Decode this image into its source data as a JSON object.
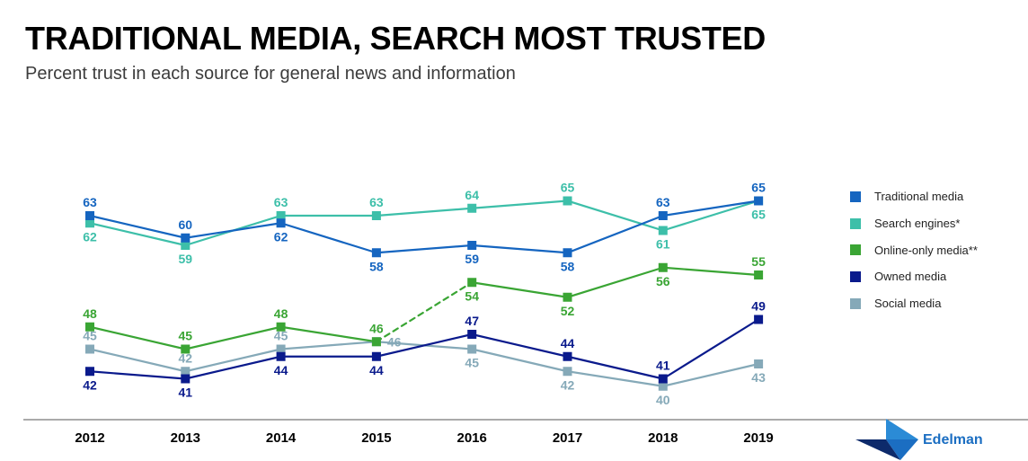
{
  "header": {
    "title": "TRADITIONAL MEDIA, SEARCH MOST TRUSTED",
    "subtitle": "Percent trust in each source for general news and information"
  },
  "chart_data": {
    "type": "line",
    "x": [
      "2012",
      "2013",
      "2014",
      "2015",
      "2016",
      "2017",
      "2018",
      "2019"
    ],
    "ylim": [
      38,
      68
    ],
    "grid": false,
    "legend_position": "right",
    "series": [
      {
        "name": "Traditional media",
        "color": "#1565c0",
        "values": [
          63,
          60,
          62,
          58,
          59,
          58,
          63,
          65
        ]
      },
      {
        "name": "Search engines*",
        "color": "#3dbfa9",
        "values": [
          62,
          59,
          63,
          63,
          64,
          65,
          61,
          65
        ]
      },
      {
        "name": "Online-only media**",
        "color": "#3aa534",
        "values": [
          48,
          45,
          48,
          46,
          54,
          52,
          56,
          55
        ]
      },
      {
        "name": "Owned media",
        "color": "#0a1a8c",
        "values": [
          42,
          41,
          44,
          44,
          47,
          44,
          41,
          49
        ]
      },
      {
        "name": "Social media",
        "color": "#85a9b8",
        "values": [
          45,
          42,
          45,
          46,
          45,
          42,
          40,
          43
        ]
      }
    ]
  },
  "brand": {
    "name": "Edelman",
    "colors": [
      "#1b6ec2",
      "#0d2a6b",
      "#2b8bd6"
    ]
  }
}
